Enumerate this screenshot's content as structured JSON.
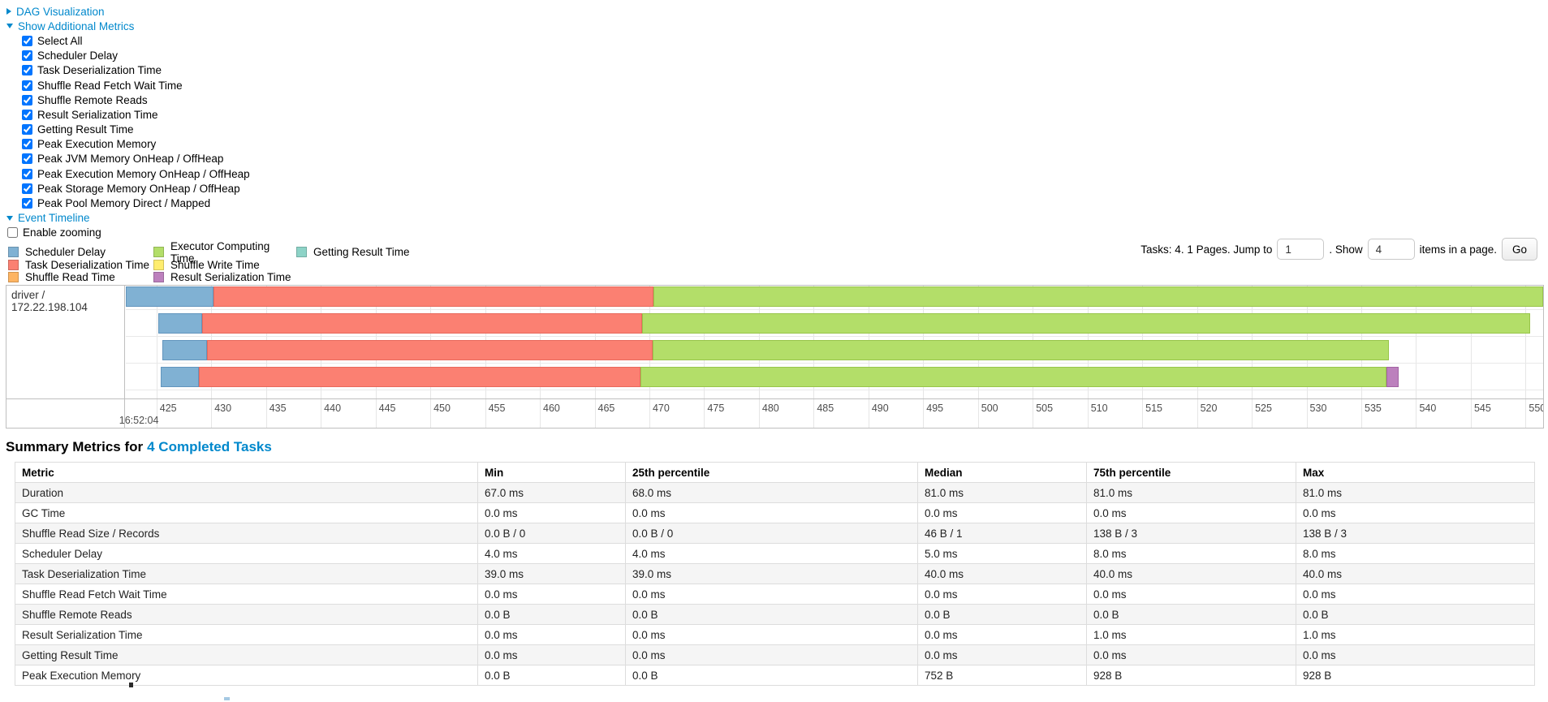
{
  "controls": {
    "dag_label": "DAG Visualization",
    "metrics_label": "Show Additional Metrics",
    "metric_checkboxes": [
      "Select All",
      "Scheduler Delay",
      "Task Deserialization Time",
      "Shuffle Read Fetch Wait Time",
      "Shuffle Remote Reads",
      "Result Serialization Time",
      "Getting Result Time",
      "Peak Execution Memory",
      "Peak JVM Memory OnHeap / OffHeap",
      "Peak Execution Memory OnHeap / OffHeap",
      "Peak Storage Memory OnHeap / OffHeap",
      "Peak Pool Memory Direct / Mapped"
    ],
    "all_checked": true,
    "timeline_label": "Event Timeline",
    "enable_zooming_label": "Enable zooming",
    "enable_zooming_checked": false,
    "link_color": "#0088cc"
  },
  "legend": {
    "columns": [
      [
        {
          "label": "Scheduler Delay",
          "color": "#80B1D3"
        },
        {
          "label": "Task Deserialization Time",
          "color": "#FB8072"
        },
        {
          "label": "Shuffle Read Time",
          "color": "#FDB462"
        }
      ],
      [
        {
          "label": "Executor Computing Time",
          "color": "#B3DE69"
        },
        {
          "label": "Shuffle Write Time",
          "color": "#FFED6F"
        },
        {
          "label": "Result Serialization Time",
          "color": "#BC80BD"
        }
      ],
      [
        {
          "label": "Getting Result Time",
          "color": "#8DD3C7"
        }
      ]
    ]
  },
  "pagination": {
    "tasks_text": "Tasks: 4. 1 Pages. Jump to",
    "jump_value": "1",
    "show_text": ". Show",
    "show_value": "4",
    "items_text": "items in a page.",
    "go_label": "Go"
  },
  "chart_data": {
    "type": "timeline",
    "group_label": "driver / 172.22.198.104",
    "axis": {
      "unit": "ms within second",
      "min": 422.2,
      "max": 551.6,
      "tick_start": 425,
      "tick_end": 550,
      "tick_step": 5,
      "base_time_label": "16:52:04"
    },
    "palette": {
      "scheduler_delay": {
        "fill": "#80B1D3",
        "border": "#6295bd"
      },
      "task_deserialization": {
        "fill": "#FB8072",
        "border": "#e8695c"
      },
      "shuffle_read": {
        "fill": "#FDB462",
        "border": "#e09a43"
      },
      "executor_computing": {
        "fill": "#B3DE69",
        "border": "#98c54a"
      },
      "shuffle_write": {
        "fill": "#FFED6F",
        "border": "#e0cf52"
      },
      "result_serialization": {
        "fill": "#BC80BD",
        "border": "#a263a3"
      },
      "getting_result": {
        "fill": "#8DD3C7",
        "border": "#6fbcae"
      }
    },
    "tasks": [
      {
        "name": "task-row-1",
        "segments": [
          {
            "kind": "scheduler_delay",
            "start": 422.2,
            "end": 430.2
          },
          {
            "kind": "task_deserialization",
            "start": 430.2,
            "end": 470.4
          },
          {
            "kind": "executor_computing",
            "start": 470.4,
            "end": 551.6
          }
        ]
      },
      {
        "name": "task-row-2",
        "segments": [
          {
            "kind": "scheduler_delay",
            "start": 425.2,
            "end": 429.2
          },
          {
            "kind": "task_deserialization",
            "start": 429.2,
            "end": 469.3
          },
          {
            "kind": "executor_computing",
            "start": 469.3,
            "end": 550.4
          }
        ]
      },
      {
        "name": "task-row-3",
        "segments": [
          {
            "kind": "scheduler_delay",
            "start": 425.5,
            "end": 429.6
          },
          {
            "kind": "task_deserialization",
            "start": 429.6,
            "end": 470.3
          },
          {
            "kind": "executor_computing",
            "start": 470.3,
            "end": 537.5
          }
        ]
      },
      {
        "name": "task-row-4",
        "segments": [
          {
            "kind": "scheduler_delay",
            "start": 425.4,
            "end": 428.9
          },
          {
            "kind": "task_deserialization",
            "start": 428.9,
            "end": 469.2
          },
          {
            "kind": "executor_computing",
            "start": 469.2,
            "end": 537.3
          },
          {
            "kind": "result_serialization",
            "start": 537.3,
            "end": 538.4
          }
        ]
      }
    ]
  },
  "summary": {
    "title_prefix": "Summary Metrics for",
    "title_link": "4 Completed Tasks",
    "columns": [
      "Metric",
      "Min",
      "25th percentile",
      "Median",
      "75th percentile",
      "Max"
    ],
    "rows": [
      [
        "Duration",
        "67.0 ms",
        "68.0 ms",
        "81.0 ms",
        "81.0 ms",
        "81.0 ms"
      ],
      [
        "GC Time",
        "0.0 ms",
        "0.0 ms",
        "0.0 ms",
        "0.0 ms",
        "0.0 ms"
      ],
      [
        "Shuffle Read Size / Records",
        "0.0 B / 0",
        "0.0 B / 0",
        "46 B / 1",
        "138 B / 3",
        "138 B / 3"
      ],
      [
        "Scheduler Delay",
        "4.0 ms",
        "4.0 ms",
        "5.0 ms",
        "8.0 ms",
        "8.0 ms"
      ],
      [
        "Task Deserialization Time",
        "39.0 ms",
        "39.0 ms",
        "40.0 ms",
        "40.0 ms",
        "40.0 ms"
      ],
      [
        "Shuffle Read Fetch Wait Time",
        "0.0 ms",
        "0.0 ms",
        "0.0 ms",
        "0.0 ms",
        "0.0 ms"
      ],
      [
        "Shuffle Remote Reads",
        "0.0 B",
        "0.0 B",
        "0.0 B",
        "0.0 B",
        "0.0 B"
      ],
      [
        "Result Serialization Time",
        "0.0 ms",
        "0.0 ms",
        "0.0 ms",
        "1.0 ms",
        "1.0 ms"
      ],
      [
        "Getting Result Time",
        "0.0 ms",
        "0.0 ms",
        "0.0 ms",
        "0.0 ms",
        "0.0 ms"
      ],
      [
        "Peak Execution Memory",
        "0.0 B",
        "0.0 B",
        "752 B",
        "928 B",
        "928 B"
      ]
    ]
  }
}
